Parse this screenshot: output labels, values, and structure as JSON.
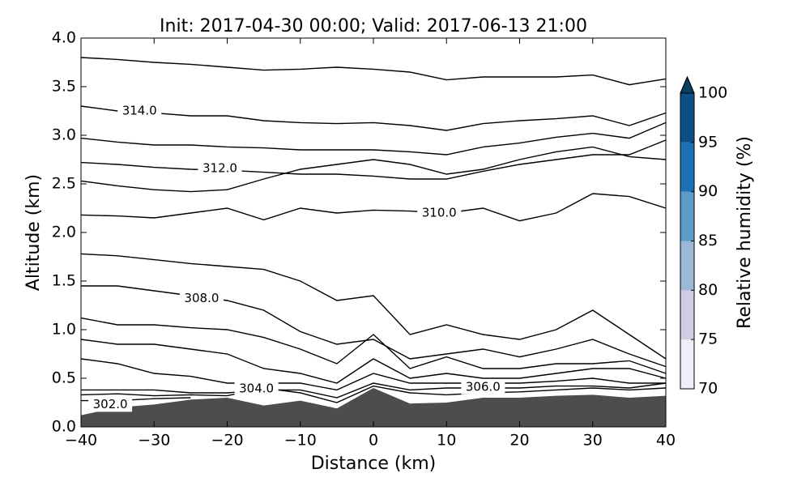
{
  "chart_data": {
    "type": "contour",
    "title": "Init: 2017-04-30 00:00; Valid: 2017-06-13 21:00",
    "xlabel": "Distance (km)",
    "ylabel": "Altitude (km)",
    "xlim": [
      -40,
      40
    ],
    "ylim": [
      0,
      4
    ],
    "xticks": [
      {
        "value": -40,
        "label": "−40"
      },
      {
        "value": -30,
        "label": "−30"
      },
      {
        "value": -20,
        "label": "−20"
      },
      {
        "value": -10,
        "label": "−10"
      },
      0,
      10,
      20,
      30,
      40
    ],
    "yticks": [
      {
        "value": 0,
        "label": "0.0"
      },
      0.5,
      {
        "value": 1,
        "label": "1.0"
      },
      1.5,
      {
        "value": 2,
        "label": "2.0"
      },
      2.5,
      {
        "value": 3,
        "label": "3.0"
      },
      3.5,
      {
        "value": 4,
        "label": "4.0"
      }
    ],
    "x": [
      -40,
      -35,
      -30,
      -25,
      -20,
      -15,
      -10,
      -5,
      0,
      5,
      10,
      15,
      20,
      25,
      30,
      35,
      40
    ],
    "line_color": "#000000",
    "series": [
      {
        "values": [
          3.8,
          3.78,
          3.75,
          3.73,
          3.7,
          3.67,
          3.68,
          3.7,
          3.68,
          3.65,
          3.57,
          3.6,
          3.6,
          3.6,
          3.62,
          3.52,
          3.58
        ]
      },
      {
        "values": [
          3.3,
          3.25,
          3.23,
          3.2,
          3.2,
          3.15,
          3.13,
          3.12,
          3.13,
          3.1,
          3.05,
          3.12,
          3.15,
          3.17,
          3.2,
          3.1,
          3.23
        ]
      },
      {
        "values": [
          2.97,
          2.93,
          2.9,
          2.9,
          2.88,
          2.87,
          2.85,
          2.85,
          2.85,
          2.83,
          2.8,
          2.88,
          2.92,
          2.98,
          3.02,
          2.97,
          3.13
        ]
      },
      {
        "values": [
          2.72,
          2.7,
          2.67,
          2.65,
          2.64,
          2.62,
          2.6,
          2.6,
          2.58,
          2.55,
          2.55,
          2.63,
          2.7,
          2.75,
          2.8,
          2.8,
          2.95
        ]
      },
      {
        "values": [
          2.53,
          2.48,
          2.44,
          2.42,
          2.44,
          2.55,
          2.65,
          2.7,
          2.75,
          2.7,
          2.6,
          2.65,
          2.75,
          2.83,
          2.88,
          2.78,
          2.75
        ]
      },
      {
        "values": [
          2.18,
          2.17,
          2.15,
          2.2,
          2.25,
          2.13,
          2.25,
          2.2,
          2.23,
          2.22,
          2.2,
          2.25,
          2.12,
          2.2,
          2.4,
          2.37,
          2.25
        ]
      },
      {
        "values": [
          1.78,
          1.76,
          1.72,
          1.68,
          1.65,
          1.62,
          1.5,
          1.3,
          1.35,
          0.95,
          1.05,
          0.95,
          0.9,
          1.0,
          1.2,
          0.95,
          0.7
        ]
      },
      {
        "values": [
          1.45,
          1.45,
          1.4,
          1.35,
          1.3,
          1.2,
          0.98,
          0.85,
          0.9,
          0.7,
          0.75,
          0.8,
          0.72,
          0.8,
          0.9,
          0.75,
          0.62
        ]
      },
      {
        "values": [
          1.12,
          1.05,
          1.05,
          1.02,
          1.0,
          0.92,
          0.8,
          0.65,
          0.95,
          0.6,
          0.72,
          0.6,
          0.6,
          0.65,
          0.65,
          0.68,
          0.55
        ]
      },
      {
        "values": [
          0.9,
          0.85,
          0.85,
          0.8,
          0.75,
          0.6,
          0.55,
          0.45,
          0.7,
          0.5,
          0.55,
          0.5,
          0.5,
          0.55,
          0.6,
          0.6,
          0.5
        ]
      },
      {
        "values": [
          0.7,
          0.65,
          0.55,
          0.52,
          0.45,
          0.45,
          0.45,
          0.38,
          0.55,
          0.45,
          0.45,
          0.45,
          0.45,
          0.47,
          0.5,
          0.45,
          0.45
        ]
      },
      {
        "values": [
          0.38,
          0.38,
          0.38,
          0.35,
          0.35,
          0.38,
          0.38,
          0.3,
          0.45,
          0.38,
          0.4,
          0.4,
          0.4,
          0.42,
          0.42,
          0.4,
          0.45
        ]
      },
      {
        "values": [
          0.33,
          0.34,
          0.32,
          0.33,
          0.32,
          0.4,
          0.35,
          0.25,
          0.42,
          0.35,
          0.33,
          0.35,
          0.36,
          0.38,
          0.4,
          0.38,
          0.4
        ]
      },
      {
        "values": [
          0.27,
          0.27,
          0.29,
          0.3,
          null,
          null,
          null,
          null,
          null,
          null,
          null,
          null,
          null,
          null,
          null,
          null,
          null
        ]
      }
    ],
    "contour_labels": [
      {
        "value": 314,
        "label": "314.0",
        "x": -32,
        "y": 3.25
      },
      {
        "value": 312,
        "label": "312.0",
        "x": -21,
        "y": 2.66
      },
      {
        "value": 310,
        "label": "310.0",
        "x": 9,
        "y": 2.2
      },
      {
        "value": 308,
        "label": "308.0",
        "x": -23.5,
        "y": 1.32
      },
      {
        "value": 306,
        "label": "306.0",
        "x": 15,
        "y": 0.41
      },
      {
        "value": 304,
        "label": "304.0",
        "x": -16,
        "y": 0.39
      },
      {
        "value": 302,
        "label": "302.0",
        "x": -36,
        "y": 0.23
      }
    ],
    "terrain": [
      0.12,
      0.2,
      0.23,
      0.28,
      0.3,
      0.22,
      0.27,
      0.19,
      0.4,
      0.24,
      0.25,
      0.3,
      0.3,
      0.32,
      0.33,
      0.3,
      0.32
    ],
    "terrain_color": "#4d4d4d",
    "colorbar": {
      "label": "Relative humidity (%)",
      "levels": [
        70,
        75,
        80,
        85,
        90,
        95,
        100
      ],
      "colors": [
        "#efedf5",
        "#cdcde4",
        "#9bb8d9",
        "#5b9ccb",
        "#1d70b2",
        "#0b4f86"
      ],
      "extend_color": "#0a3e63"
    }
  }
}
